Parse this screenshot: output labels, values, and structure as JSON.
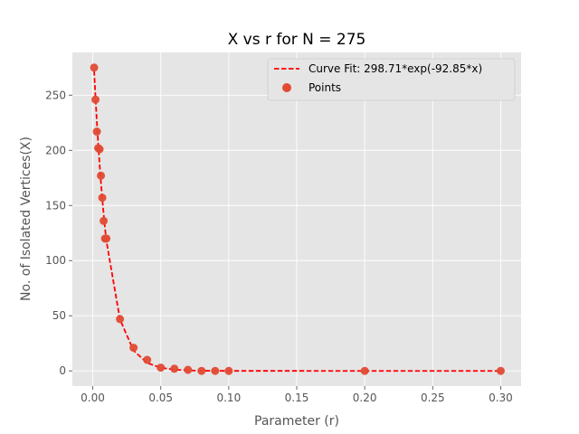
{
  "chart_data": {
    "type": "scatter",
    "title": "X vs r for N = 275",
    "xlabel": "Parameter (r)",
    "ylabel": "No. of Isolated Vertices(X)",
    "xlim": [
      -0.015,
      0.315
    ],
    "ylim": [
      -13.75,
      288.75
    ],
    "x_ticks": [
      0.0,
      0.05,
      0.1,
      0.15,
      0.2,
      0.25,
      0.3
    ],
    "x_tick_labels": [
      "0.00",
      "0.05",
      "0.10",
      "0.15",
      "0.20",
      "0.25",
      "0.30"
    ],
    "y_ticks": [
      0,
      50,
      100,
      150,
      200,
      250
    ],
    "y_tick_labels": [
      "0",
      "50",
      "100",
      "150",
      "200",
      "250"
    ],
    "grid": true,
    "legend_position": "top-right",
    "series": [
      {
        "name": "Curve Fit: 298.71*exp(-92.85*x)",
        "kind": "dashed-line",
        "color": "#ff0000",
        "fit": {
          "a": 298.71,
          "b": -92.85
        }
      },
      {
        "name": "Points",
        "kind": "scatter",
        "color": "#e24a33",
        "x": [
          0.001,
          0.002,
          0.003,
          0.004,
          0.005,
          0.006,
          0.007,
          0.008,
          0.009,
          0.01,
          0.02,
          0.03,
          0.04,
          0.05,
          0.06,
          0.07,
          0.08,
          0.09,
          0.1,
          0.2,
          0.3
        ],
        "y": [
          275,
          246,
          217,
          202,
          201,
          177,
          157,
          136,
          120,
          120,
          47,
          21,
          10,
          3,
          2,
          1,
          0,
          0,
          0,
          0,
          0
        ]
      }
    ]
  },
  "colors": {
    "panel_bg": "#e5e5e5",
    "grid": "#ffffff",
    "text": "#555555"
  }
}
